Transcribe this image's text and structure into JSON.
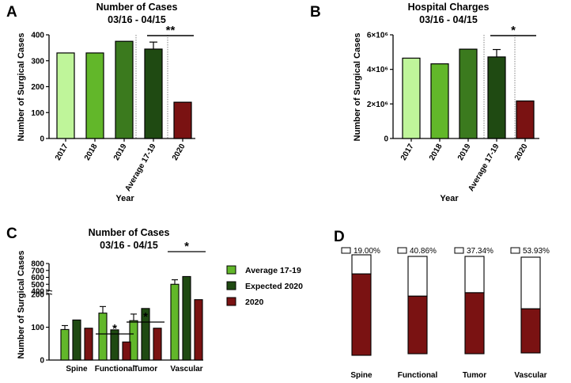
{
  "colors": {
    "y2017": "#bff59a",
    "y2018": "#62b72a",
    "y2019": "#3b7a1e",
    "avg": "#1f4a12",
    "y2020": "#7a1212",
    "legend_avg": "#62b72a",
    "legend_expected": "#1f4a12",
    "legend_2020": "#7a1212",
    "fill_d": "#7a1212"
  },
  "panels": {
    "a": "A",
    "b": "B",
    "c": "C",
    "d": "D"
  },
  "chart_data": [
    {
      "id": "A",
      "type": "bar",
      "title": "Number of Cases",
      "subtitle": "03/16 - 04/15",
      "xlabel": "Year",
      "ylabel": "Number of Surgical  Cases",
      "ylim": [
        0,
        400
      ],
      "yticks": [
        "0",
        "100",
        "200",
        "300",
        "400"
      ],
      "categories": [
        "2017",
        "2018",
        "2019",
        "Average 17-19",
        "2020"
      ],
      "values": [
        330,
        330,
        375,
        345,
        140
      ],
      "error_upper": [
        null,
        null,
        null,
        372,
        null
      ],
      "significance": [
        {
          "from": 3,
          "to": 4,
          "label": "**"
        }
      ]
    },
    {
      "id": "B",
      "type": "bar",
      "title": "Hospital Charges",
      "subtitle": "03/16 - 04/15",
      "xlabel": "Year",
      "ylabel": "Number of Surgical  Cases",
      "ylim": [
        0,
        6000000
      ],
      "yticks": [
        "0",
        "2×10⁶",
        "4×10⁶",
        "6×10⁶"
      ],
      "categories": [
        "2017",
        "2018",
        "2019",
        "Average 17-19",
        "2020"
      ],
      "values": [
        4650000,
        4320000,
        5170000,
        4720000,
        2170000
      ],
      "error_upper": [
        null,
        null,
        null,
        5150000,
        null
      ],
      "significance": [
        {
          "from": 3,
          "to": 4,
          "label": "*"
        }
      ]
    },
    {
      "id": "C",
      "type": "bar",
      "title": "Number of Cases",
      "subtitle": "03/16 - 04/15",
      "ylabel": "Number of Surgical  Cases",
      "ylim": [
        0,
        800
      ],
      "axis_break": [
        200,
        400
      ],
      "yticks": [
        "0",
        "100",
        "200",
        "400",
        "500",
        "600",
        "700",
        "800"
      ],
      "categories": [
        "Spine",
        "Functional",
        "Tumor",
        "Vascular"
      ],
      "series": [
        {
          "name": "Average 17-19",
          "values": [
            93,
            143,
            120,
            500
          ],
          "error_upper": [
            105,
            163,
            140,
            565
          ]
        },
        {
          "name": "Expected 2020",
          "values": [
            122,
            92,
            157,
            612
          ]
        },
        {
          "name": "2020",
          "values": [
            97,
            55,
            97,
            278
          ]
        }
      ],
      "significance": [
        {
          "group": 1,
          "label": "*"
        },
        {
          "group": 2,
          "label": "*"
        },
        {
          "group": 3,
          "label": "*"
        }
      ]
    },
    {
      "id": "D",
      "type": "bar",
      "categories": [
        "Spine",
        "Functional",
        "Tumor",
        "Vascular"
      ],
      "empty_percent_labels": [
        "19.00%",
        "40.86%",
        "37.34%",
        "53.93%"
      ],
      "empty_percent": [
        19.0,
        40.86,
        37.34,
        53.93
      ]
    }
  ]
}
